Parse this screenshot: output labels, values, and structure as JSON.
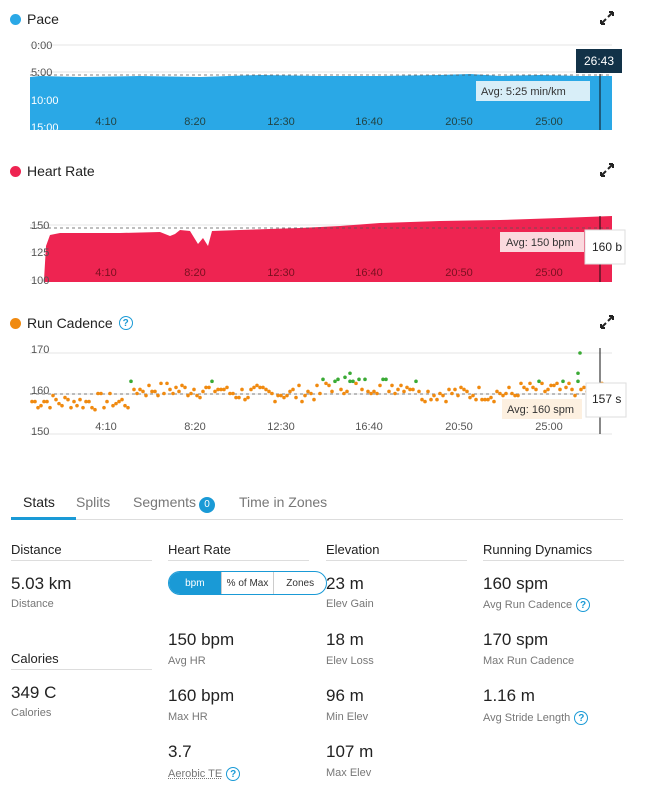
{
  "pace": {
    "title": "Pace",
    "color": "#2aa8e6",
    "y_ticks": [
      "0:00",
      "5:00",
      "10:00",
      "15:00"
    ],
    "x_ticks": [
      "4:10",
      "8:20",
      "12:30",
      "16:40",
      "20:50",
      "25:00"
    ],
    "avg_label": "Avg: 5:25 min/km",
    "cursor_time": "26:43"
  },
  "heart_rate": {
    "title": "Heart Rate",
    "color": "#ee2451",
    "y_ticks": [
      "150",
      "125",
      "100"
    ],
    "x_ticks": [
      "4:10",
      "8:20",
      "12:30",
      "16:40",
      "20:50",
      "25:00"
    ],
    "avg_label": "Avg: 150 bpm",
    "cursor_value": "160 b"
  },
  "cadence": {
    "title": "Run Cadence",
    "color": "#f08a10",
    "high_color": "#3aaa35",
    "y_ticks": [
      "170",
      "160",
      "150"
    ],
    "x_ticks": [
      "4:10",
      "8:20",
      "12:30",
      "16:40",
      "20:50",
      "25:00"
    ],
    "avg_label": "Avg: 160 spm",
    "cursor_value": "157 s"
  },
  "chart_data": [
    {
      "type": "area",
      "title": "Pace",
      "x": [
        "4:10",
        "8:20",
        "12:30",
        "16:40",
        "20:50",
        "25:00"
      ],
      "ylabel": "min/km",
      "ylim": [
        "0:00",
        "15:00"
      ],
      "avg": "5:25",
      "series": [
        {
          "name": "Pace",
          "values": [
            "5:25",
            "5:20",
            "5:22",
            "5:20",
            "5:25",
            "5:28"
          ]
        }
      ]
    },
    {
      "type": "area",
      "title": "Heart Rate",
      "x": [
        "4:10",
        "8:20",
        "12:30",
        "16:40",
        "20:50",
        "25:00"
      ],
      "ylim": [
        100,
        155
      ],
      "avg": 150,
      "series": [
        {
          "name": "Heart Rate",
          "values": [
            144,
            145,
            149,
            152,
            154,
            158
          ]
        }
      ]
    },
    {
      "type": "scatter",
      "title": "Run Cadence",
      "x": [
        "4:10",
        "8:20",
        "12:30",
        "16:40",
        "20:50",
        "25:00"
      ],
      "ylim": [
        150,
        172
      ],
      "avg": 160,
      "series": [
        {
          "name": "Run Cadence",
          "values": [
            158,
            161,
            160,
            162,
            160,
            161
          ]
        }
      ]
    }
  ],
  "tabs": [
    {
      "label": "Stats"
    },
    {
      "label": "Splits"
    },
    {
      "label": "Segments",
      "badge": "0"
    },
    {
      "label": "Time in Zones"
    }
  ],
  "stats": {
    "distance": {
      "header": "Distance",
      "value": "5.03 km",
      "label": "Distance"
    },
    "calories": {
      "header": "Calories",
      "value": "349 C",
      "label": "Calories"
    },
    "heart_rate": {
      "header": "Heart Rate",
      "toggle": [
        "bpm",
        "% of Max",
        "Zones"
      ],
      "avg_value": "150 bpm",
      "avg_label": "Avg HR",
      "max_value": "160 bpm",
      "max_label": "Max HR",
      "te_value": "3.7",
      "te_label": "Aerobic TE"
    },
    "elevation": {
      "header": "Elevation",
      "gain_value": "23 m",
      "gain_label": "Elev Gain",
      "loss_value": "18 m",
      "loss_label": "Elev Loss",
      "min_value": "96 m",
      "min_label": "Min Elev",
      "max_value": "107 m",
      "max_label": "Max Elev"
    },
    "running_dynamics": {
      "header": "Running Dynamics",
      "avg_cad_value": "160 spm",
      "avg_cad_label": "Avg Run Cadence",
      "max_cad_value": "170 spm",
      "max_cad_label": "Max Run Cadence",
      "stride_value": "1.16 m",
      "stride_label": "Avg Stride Length"
    }
  }
}
